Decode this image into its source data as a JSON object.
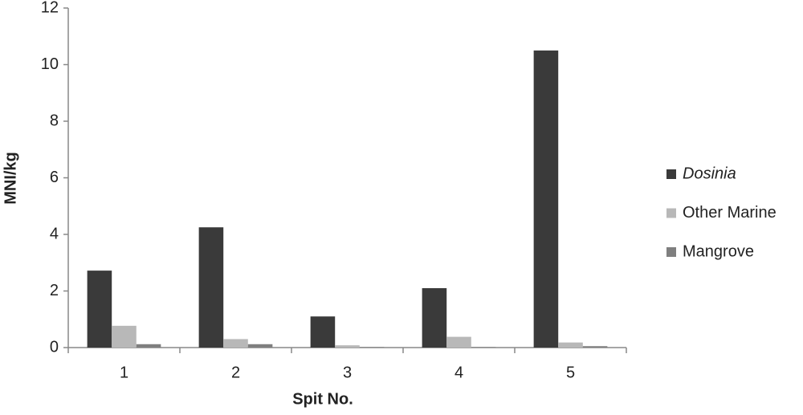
{
  "chart_data": {
    "type": "bar",
    "categories": [
      "1",
      "2",
      "3",
      "4",
      "5"
    ],
    "series": [
      {
        "name": "Dosinia",
        "color": "#3a3a3a",
        "values": [
          2.72,
          4.25,
          1.1,
          2.1,
          10.5
        ]
      },
      {
        "name": "Other Marine",
        "color": "#b8b8b8",
        "values": [
          0.77,
          0.3,
          0.08,
          0.38,
          0.18
        ]
      },
      {
        "name": "Mangrove",
        "color": "#7f7f7f",
        "values": [
          0.12,
          0.12,
          0.02,
          0.02,
          0.05
        ]
      }
    ],
    "x_label": "Spit No.",
    "y_label": "MNI/kg",
    "ylim": [
      0,
      12
    ],
    "yticks": [
      0,
      2,
      4,
      6,
      8,
      10,
      12
    ],
    "grid": false,
    "legend": "right"
  }
}
